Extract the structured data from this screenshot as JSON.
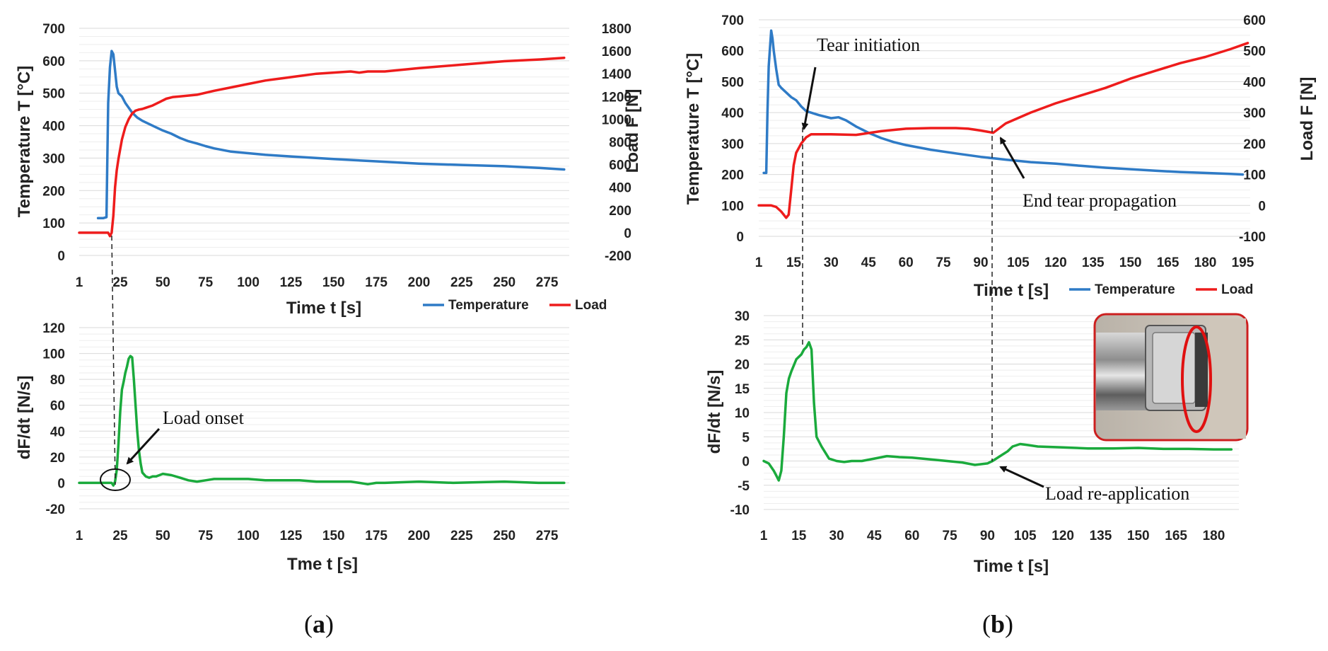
{
  "colors": {
    "temperature": "#2f7bc6",
    "load": "#ee1c1c",
    "derivative": "#1aaa3c",
    "grid": "#d9d9d9",
    "inset_border": "#cc1f1f"
  },
  "chart_data": [
    {
      "id": "a_top",
      "type": "line",
      "xlabel": "Time t [s]",
      "ylabel": "Temperature T [°C]",
      "y2label": "Load F [N]",
      "xlim": [
        1,
        288
      ],
      "ylim": [
        0,
        700
      ],
      "y2lim": [
        -200,
        1800
      ],
      "x_ticks": [
        "1",
        "25",
        "50",
        "75",
        "100",
        "125",
        "150",
        "175",
        "200",
        "225",
        "250",
        "275"
      ],
      "x_tick_values": [
        1,
        25,
        50,
        75,
        100,
        125,
        150,
        175,
        200,
        225,
        250,
        275
      ],
      "y_ticks": [
        "0",
        "100",
        "200",
        "300",
        "400",
        "500",
        "600",
        "700"
      ],
      "y2_ticks": [
        "-200",
        "0",
        "200",
        "400",
        "600",
        "800",
        "1000",
        "1200",
        "1400",
        "1600",
        "1800"
      ],
      "legend": [
        "Temperature",
        "Load"
      ],
      "legend_position": "bottom-right",
      "series": [
        {
          "name": "Temperature",
          "axis": "left",
          "x": [
            12,
            15,
            17,
            17.5,
            18,
            19,
            20,
            21,
            22,
            23,
            24,
            26,
            28,
            30,
            32,
            35,
            38,
            42,
            46,
            50,
            55,
            60,
            65,
            70,
            75,
            80,
            90,
            100,
            110,
            125,
            150,
            175,
            200,
            225,
            250,
            270,
            285
          ],
          "values": [
            115,
            115,
            118,
            300,
            470,
            580,
            630,
            620,
            570,
            520,
            500,
            490,
            470,
            455,
            440,
            425,
            415,
            405,
            395,
            385,
            375,
            362,
            352,
            345,
            337,
            330,
            320,
            315,
            310,
            305,
            297,
            290,
            283,
            279,
            275,
            270,
            265
          ]
        },
        {
          "name": "Load",
          "axis": "right",
          "x": [
            1,
            10,
            18,
            19,
            20,
            21,
            22,
            23,
            24,
            26,
            28,
            30,
            32,
            34,
            36,
            38,
            40,
            44,
            48,
            52,
            56,
            60,
            70,
            80,
            90,
            100,
            110,
            120,
            130,
            140,
            150,
            160,
            165,
            170,
            180,
            200,
            225,
            250,
            270,
            285
          ],
          "values": [
            0,
            0,
            0,
            -30,
            0,
            150,
            400,
            550,
            650,
            820,
            930,
            1000,
            1050,
            1075,
            1085,
            1090,
            1100,
            1120,
            1150,
            1180,
            1195,
            1200,
            1215,
            1250,
            1280,
            1310,
            1340,
            1360,
            1380,
            1400,
            1410,
            1420,
            1410,
            1420,
            1420,
            1450,
            1480,
            1510,
            1525,
            1540
          ]
        }
      ]
    },
    {
      "id": "a_bottom",
      "type": "line",
      "xlabel": "Tme t [s]",
      "ylabel": "dF/dt [N/s]",
      "xlim": [
        1,
        288
      ],
      "ylim": [
        -20,
        120
      ],
      "x_ticks": [
        "1",
        "25",
        "50",
        "75",
        "100",
        "125",
        "150",
        "175",
        "200",
        "225",
        "250",
        "275"
      ],
      "x_tick_values": [
        1,
        25,
        50,
        75,
        100,
        125,
        150,
        175,
        200,
        225,
        250,
        275
      ],
      "y_ticks": [
        "-20",
        "0",
        "20",
        "40",
        "60",
        "80",
        "100",
        "120"
      ],
      "annotations": [
        "Load onset"
      ],
      "series": [
        {
          "name": "dF/dt",
          "x": [
            1,
            15,
            20,
            21,
            22,
            23,
            24,
            25,
            26,
            27,
            28,
            29,
            30,
            31,
            32,
            33,
            34,
            35,
            36,
            37,
            38,
            40,
            42,
            44,
            46,
            48,
            50,
            55,
            60,
            65,
            70,
            75,
            80,
            90,
            100,
            110,
            120,
            130,
            140,
            150,
            160,
            165,
            170,
            175,
            180,
            200,
            220,
            250,
            270,
            285
          ],
          "values": [
            0,
            0,
            0,
            -2,
            1,
            10,
            30,
            55,
            72,
            78,
            85,
            90,
            96,
            98,
            97,
            80,
            60,
            40,
            25,
            15,
            8,
            5,
            4,
            5,
            5,
            6,
            7,
            6,
            4,
            2,
            1,
            2,
            3,
            3,
            3,
            2,
            2,
            2,
            1,
            1,
            1,
            0,
            -1,
            0,
            0,
            1,
            0,
            1,
            0,
            0
          ]
        }
      ]
    },
    {
      "id": "b_top",
      "type": "line",
      "xlabel": "Time t [s]",
      "ylabel": "Temperature T [°C]",
      "y2label": "Load F [N]",
      "xlim": [
        1,
        198
      ],
      "ylim": [
        0,
        700
      ],
      "y2lim": [
        -100,
        600
      ],
      "x_ticks": [
        "1",
        "15",
        "30",
        "45",
        "60",
        "75",
        "90",
        "105",
        "120",
        "135",
        "150",
        "165",
        "180",
        "195"
      ],
      "x_tick_values": [
        1,
        15,
        30,
        45,
        60,
        75,
        90,
        105,
        120,
        135,
        150,
        165,
        180,
        195
      ],
      "y_ticks": [
        "0",
        "100",
        "200",
        "300",
        "400",
        "500",
        "600",
        "700"
      ],
      "y2_ticks": [
        "-100",
        "0",
        "100",
        "200",
        "300",
        "400",
        "500",
        "600"
      ],
      "legend": [
        "Temperature",
        "Load"
      ],
      "legend_position": "bottom-right",
      "annotations": [
        "Tear initiation",
        "End tear propagation"
      ],
      "series": [
        {
          "name": "Temperature",
          "axis": "left",
          "x": [
            3,
            4,
            4.5,
            5,
            5.5,
            6,
            6.5,
            7,
            8,
            9,
            10,
            12,
            14,
            16,
            18,
            20,
            25,
            30,
            33,
            36,
            40,
            45,
            50,
            55,
            60,
            70,
            80,
            90,
            100,
            110,
            120,
            130,
            140,
            150,
            160,
            170,
            180,
            190,
            195
          ],
          "values": [
            205,
            205,
            400,
            550,
            610,
            665,
            640,
            600,
            540,
            490,
            480,
            465,
            450,
            440,
            420,
            405,
            392,
            382,
            385,
            375,
            355,
            335,
            318,
            305,
            295,
            280,
            268,
            257,
            248,
            240,
            235,
            228,
            222,
            217,
            212,
            208,
            205,
            202,
            200
          ]
        },
        {
          "name": "Load",
          "axis": "right",
          "x": [
            1,
            6,
            8,
            10,
            12,
            13,
            14,
            15,
            16,
            18,
            20,
            22,
            24,
            30,
            40,
            50,
            60,
            70,
            80,
            85,
            90,
            95,
            100,
            110,
            120,
            130,
            140,
            150,
            160,
            170,
            180,
            190,
            197
          ],
          "values": [
            0,
            0,
            -5,
            -20,
            -40,
            -30,
            50,
            130,
            170,
            200,
            220,
            230,
            230,
            230,
            228,
            240,
            248,
            250,
            250,
            248,
            242,
            235,
            265,
            300,
            330,
            355,
            380,
            410,
            435,
            460,
            480,
            505,
            525
          ]
        }
      ]
    },
    {
      "id": "b_bottom",
      "type": "line",
      "xlabel": "Time t [s]",
      "ylabel": "dF/dt [N/s]",
      "xlim": [
        1,
        190
      ],
      "ylim": [
        -10,
        30
      ],
      "x_ticks": [
        "1",
        "15",
        "30",
        "45",
        "60",
        "75",
        "90",
        "105",
        "120",
        "135",
        "150",
        "165",
        "180"
      ],
      "x_tick_values": [
        1,
        15,
        30,
        45,
        60,
        75,
        90,
        105,
        120,
        135,
        150,
        165,
        180
      ],
      "y_ticks": [
        "-10",
        "-5",
        "0",
        "5",
        "10",
        "15",
        "20",
        "25",
        "30"
      ],
      "annotations": [
        "Load re-application"
      ],
      "series": [
        {
          "name": "dF/dt",
          "x": [
            1,
            3,
            5,
            6,
            7,
            8,
            9,
            10,
            11,
            12,
            14,
            16,
            17,
            18,
            19,
            20,
            21,
            22,
            24,
            27,
            30,
            33,
            36,
            40,
            45,
            50,
            55,
            60,
            70,
            80,
            85,
            90,
            92,
            95,
            98,
            100,
            103,
            106,
            110,
            120,
            130,
            140,
            150,
            160,
            170,
            180,
            187
          ],
          "values": [
            0,
            -0.5,
            -2,
            -3,
            -4,
            -2,
            5,
            14,
            17,
            18.5,
            21,
            22,
            23,
            23.5,
            24.5,
            23,
            12,
            5,
            3,
            0.5,
            0,
            -0.2,
            0,
            0,
            0.5,
            1,
            0.8,
            0.7,
            0.2,
            -0.3,
            -0.8,
            -0.5,
            0,
            1,
            2,
            3,
            3.5,
            3.3,
            3,
            2.8,
            2.6,
            2.6,
            2.7,
            2.5,
            2.5,
            2.4,
            2.4
          ]
        }
      ]
    }
  ],
  "captions": {
    "panel_a": "a",
    "panel_b": "b"
  },
  "inset": {
    "icon": "weld-specimen-photo-icon"
  }
}
